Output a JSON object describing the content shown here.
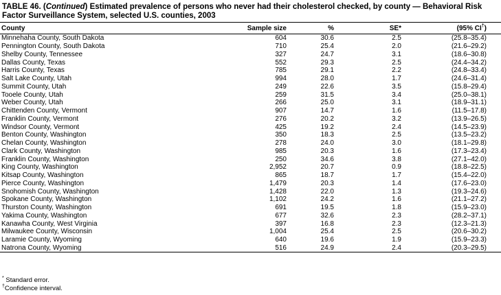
{
  "title": [
    "TABLE 46. (",
    "Continued",
    ") Estimated prevalence of persons who never had their cholesterol checked, by county — Behavioral Risk Factor Surveillance System, selected U.S. counties, 2003"
  ],
  "table": {
    "header": [
      "County",
      "Sample size",
      "%",
      "SE*",
      {
        "text": "(95% CI",
        "sup": "†",
        "close": ")"
      }
    ],
    "rows": [
      [
        "Minnehaha County, South Dakota",
        "604",
        "30.6",
        "2.5",
        "(25.8–35.4)"
      ],
      [
        "Pennington County, South Dakota",
        "710",
        "25.4",
        "2.0",
        "(21.6–29.2)"
      ],
      [
        "Shelby County, Tennessee",
        "327",
        "24.7",
        "3.1",
        "(18.6–30.8)"
      ],
      [
        "Dallas County, Texas",
        "552",
        "29.3",
        "2.5",
        "(24.4–34.2)"
      ],
      [
        "Harris County, Texas",
        "785",
        "29.1",
        "2.2",
        "(24.8–33.4)"
      ],
      [
        "Salt Lake County, Utah",
        "994",
        "28.0",
        "1.7",
        "(24.6–31.4)"
      ],
      [
        "Summit County, Utah",
        "249",
        "22.6",
        "3.5",
        "(15.8–29.4)"
      ],
      [
        "Tooele County, Utah",
        "259",
        "31.5",
        "3.4",
        "(25.0–38.1)"
      ],
      [
        "Weber County, Utah",
        "266",
        "25.0",
        "3.1",
        "(18.9–31.1)"
      ],
      [
        "Chittenden County, Vermont",
        "907",
        "14.7",
        "1.6",
        "(11.5–17.8)"
      ],
      [
        "Franklin County, Vermont",
        "276",
        "20.2",
        "3.2",
        "(13.9–26.5)"
      ],
      [
        "Windsor County, Vermont",
        "425",
        "19.2",
        "2.4",
        "(14.5–23.9)"
      ],
      [
        "Benton County, Washington",
        "350",
        "18.3",
        "2.5",
        "(13.5–23.2)"
      ],
      [
        "Chelan County, Washington",
        "278",
        "24.0",
        "3.0",
        "(18.1–29.8)"
      ],
      [
        "Clark County, Washington",
        "985",
        "20.3",
        "1.6",
        "(17.3–23.4)"
      ],
      [
        "Franklin County, Washington",
        "250",
        "34.6",
        "3.8",
        "(27.1–42.0)"
      ],
      [
        "King County, Washington",
        "2,952",
        "20.7",
        "0.9",
        "(18.8–22.5)"
      ],
      [
        "Kitsap County, Washington",
        "865",
        "18.7",
        "1.7",
        "(15.4–22.0)"
      ],
      [
        "Pierce County, Washington",
        "1,479",
        "20.3",
        "1.4",
        "(17.6–23.0)"
      ],
      [
        "Snohomish County, Washington",
        "1,428",
        "22.0",
        "1.3",
        "(19.3–24.6)"
      ],
      [
        "Spokane County, Washington",
        "1,102",
        "24.2",
        "1.6",
        "(21.1–27.2)"
      ],
      [
        "Thurston County, Washington",
        "691",
        "19.5",
        "1.8",
        "(15.9–23.0)"
      ],
      [
        "Yakima County, Washington",
        "677",
        "32.6",
        "2.3",
        "(28.2–37.1)"
      ],
      [
        "Kanawha County, West Virginia",
        "397",
        "16.8",
        "2.3",
        "(12.3–21.3)"
      ],
      [
        "Milwaukee County, Wisconsin",
        "1,004",
        "25.4",
        "2.5",
        "(20.6–30.2)"
      ],
      [
        "Laramie County, Wyoming",
        "640",
        "19.6",
        "1.9",
        "(15.9–23.3)"
      ],
      [
        "Natrona County, Wyoming",
        "516",
        "24.9",
        "2.4",
        "(20.3–29.5)"
      ]
    ]
  },
  "footnotes": [
    {
      "mark": "*",
      "text": "Standard error."
    },
    {
      "mark": "†",
      "text": "Confidence interval."
    }
  ]
}
